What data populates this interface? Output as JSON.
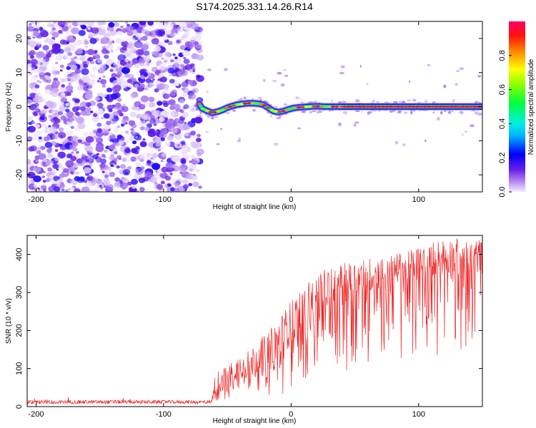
{
  "title": "S174.2025.331.14.26.R14",
  "chart_data": [
    {
      "type": "heatmap",
      "name": "spectrogram",
      "xlabel": "Height of straight line (km)",
      "ylabel": "Frequency (Hz)",
      "xlim": [
        -207,
        150
      ],
      "ylim": [
        -25,
        25
      ],
      "xticks": [
        -200,
        -100,
        0,
        100
      ],
      "yticks": [
        -20,
        -10,
        0,
        10,
        20
      ],
      "noise_region_x": [
        -207,
        -71
      ],
      "ridge": {
        "x": [
          -72,
          -70,
          -66,
          -62,
          -58,
          -54,
          -50,
          -46,
          -42,
          -38,
          -34,
          -30,
          -26,
          -22,
          -18,
          -14,
          -10,
          -6,
          -2,
          2,
          6,
          10,
          14,
          18,
          22,
          26,
          30,
          35,
          40,
          60,
          80,
          100,
          120,
          150
        ],
        "y": [
          0.8,
          -0.5,
          -1.2,
          -1.8,
          -1.5,
          -1.0,
          -0.3,
          0.2,
          0.6,
          0.8,
          1.0,
          1.0,
          0.9,
          0.6,
          -0.3,
          -1.3,
          -1.6,
          -1.3,
          -0.8,
          -0.4,
          -0.2,
          -0.1,
          0.0,
          0.1,
          0.1,
          0.0,
          0.0,
          0.0,
          0.0,
          0.0,
          0.0,
          0.0,
          0.0,
          0.0
        ]
      },
      "colorbar": {
        "label": "Normalized spectral amplitude",
        "range": [
          0.0,
          1.0
        ],
        "ticks": [
          "0.0",
          "0.2",
          "0.4",
          "0.6",
          "0.8"
        ]
      }
    },
    {
      "type": "line",
      "name": "snr",
      "series": [
        {
          "name": "SNR",
          "color": "#ee2222"
        }
      ],
      "xlabel": "Height of straight line (km)",
      "ylabel": "SNR (10 * v/v)",
      "xlim": [
        -207,
        150
      ],
      "ylim": [
        0,
        450
      ],
      "xticks": [
        -200,
        -100,
        0,
        100
      ],
      "yticks": [
        0,
        100,
        200,
        300,
        400
      ],
      "envelope": {
        "x": [
          -207,
          -100,
          -62,
          -60,
          -50,
          -40,
          -30,
          -20,
          -10,
          0,
          10,
          20,
          30,
          40,
          50,
          60,
          80,
          100,
          120,
          150
        ],
        "base": [
          12,
          12,
          12,
          30,
          55,
          70,
          90,
          110,
          130,
          160,
          205,
          240,
          270,
          285,
          290,
          300,
          320,
          340,
          345,
          350
        ],
        "peak": [
          22,
          24,
          28,
          90,
          110,
          140,
          160,
          190,
          230,
          280,
          320,
          350,
          365,
          375,
          385,
          390,
          400,
          420,
          445,
          440
        ],
        "trough": [
          5,
          5,
          5,
          10,
          20,
          30,
          40,
          30,
          30,
          40,
          50,
          60,
          80,
          90,
          100,
          100,
          110,
          110,
          120,
          130
        ]
      }
    }
  ]
}
